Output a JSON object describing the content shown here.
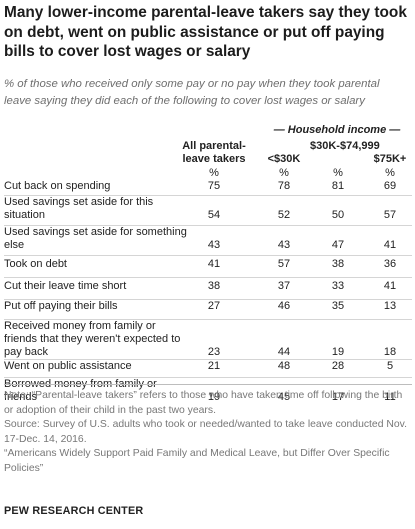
{
  "title": "Many lower-income parental-leave takers say they took on debt, went on public assistance or put off paying bills to cover lost wages or salary",
  "subtitle": "% of those who received only some pay or no pay when they took parental leave saying they did each of the following to cover lost wages or salary",
  "group_header": "— Household income —",
  "columns": {
    "all": "All parental-leave takers",
    "lt30": "<$30K",
    "mid": "$30K-$74,999",
    "gt75": "$75K+"
  },
  "pct_marker": "%",
  "chart_data": {
    "type": "table",
    "columns": [
      "All parental-leave takers",
      "<$30K",
      "$30K-$74,999",
      "$75K+"
    ],
    "rows": [
      {
        "label": "Cut back on spending",
        "values": [
          75,
          78,
          81,
          69
        ]
      },
      {
        "label": "Used savings set aside for this situation",
        "values": [
          54,
          52,
          50,
          57
        ]
      },
      {
        "label": "Used savings set aside for something else",
        "values": [
          43,
          43,
          47,
          41
        ]
      },
      {
        "label": "Took on debt",
        "values": [
          41,
          57,
          38,
          36
        ]
      },
      {
        "label": "Cut their leave time short",
        "values": [
          38,
          37,
          33,
          41
        ]
      },
      {
        "label": "Put off paying their bills",
        "values": [
          27,
          46,
          35,
          13
        ]
      },
      {
        "label": "Received money from family or friends that they weren't expected to pay back",
        "values": [
          23,
          44,
          19,
          18
        ]
      },
      {
        "label": "Went on public assistance",
        "values": [
          21,
          48,
          28,
          5
        ]
      },
      {
        "label": "Borrowed money from family or friends",
        "values": [
          19,
          45,
          17,
          11
        ]
      }
    ]
  },
  "notes": {
    "note": "Note: “Parental-leave takers” refers to those who have taken time off following the birth or adoption of their child in the past two years.",
    "source": "Source: Survey of U.S. adults who took or needed/wanted to take leave conducted Nov. 17-Dec. 14, 2016.",
    "report": "“Americans Widely Support Paid Family and Medical Leave, but Differ Over Specific Policies”"
  },
  "org": "PEW RESEARCH CENTER"
}
